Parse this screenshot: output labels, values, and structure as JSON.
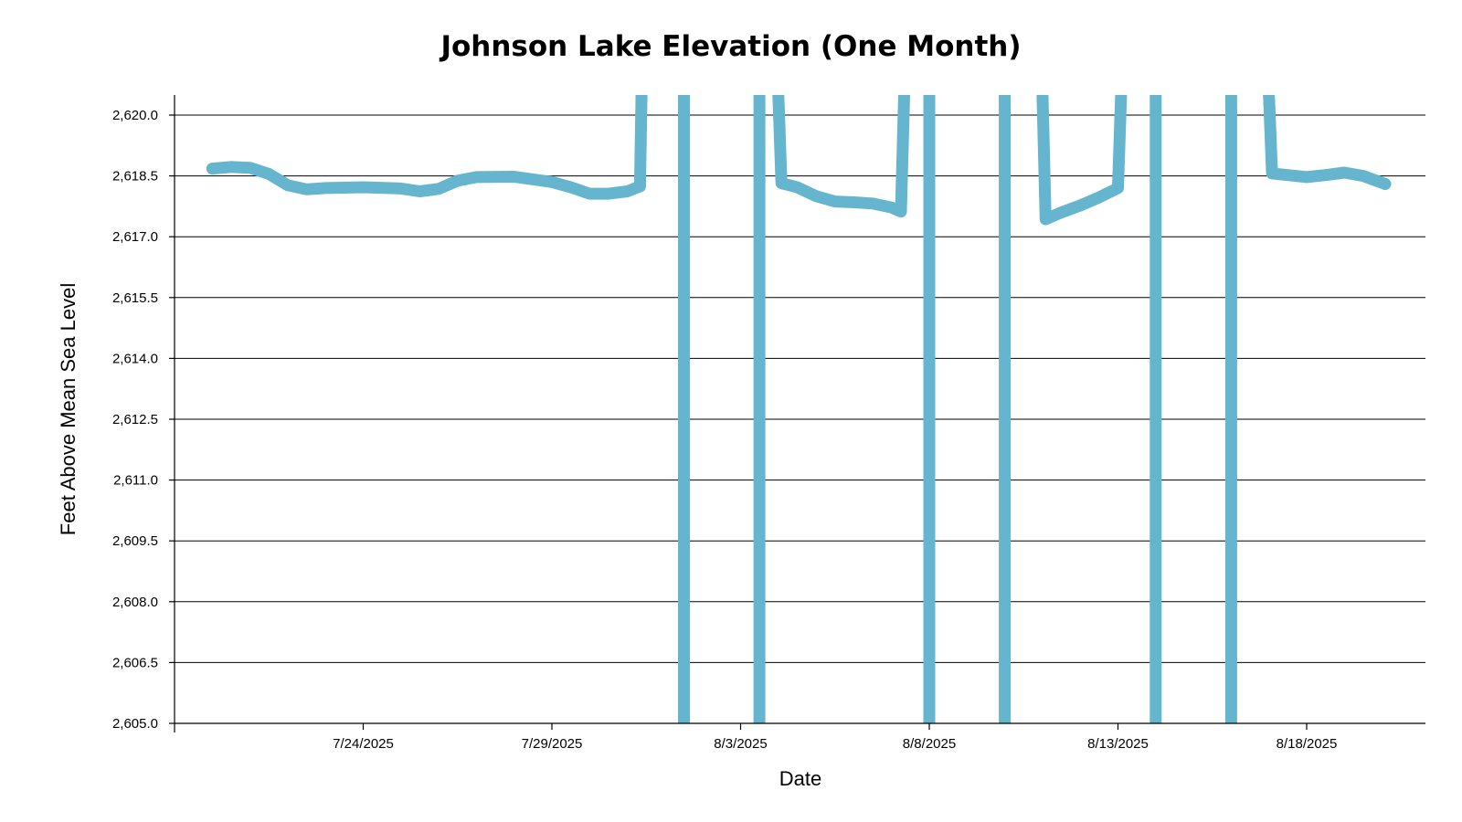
{
  "chart_data": {
    "type": "line",
    "title": "Johnson Lake Elevation (One Month)",
    "xlabel": "Date",
    "ylabel": "Feet Above Mean Sea Level",
    "ylim": [
      2605.0,
      2620.5
    ],
    "xlim": [
      "2025-07-19T00:00",
      "2025-08-21T00:00"
    ],
    "y_ticks": [
      2605.0,
      2606.5,
      2608.0,
      2609.5,
      2611.0,
      2612.5,
      2614.0,
      2615.5,
      2617.0,
      2618.5,
      2620.0
    ],
    "y_tick_labels": [
      "2,605.0",
      "2,606.5",
      "2,608.0",
      "2,609.5",
      "2,611.0",
      "2,612.5",
      "2,614.0",
      "2,615.5",
      "2,617.0",
      "2,618.5",
      "2,620.0"
    ],
    "x_ticks": [
      "2025-07-24T00:00",
      "2025-07-29T00:00",
      "2025-08-03T00:00",
      "2025-08-08T00:00",
      "2025-08-13T00:00",
      "2025-08-18T00:00"
    ],
    "x_tick_labels": [
      "7/24/2025",
      "7/29/2025",
      "8/3/2025",
      "8/8/2025",
      "8/13/2025",
      "8/18/2025"
    ],
    "grid": "horizontal",
    "legend": "none",
    "series_color": "#64b5cd",
    "series": [
      {
        "points": [
          [
            "2025-07-20T00:00",
            2618.68
          ],
          [
            "2025-07-20T12:00",
            2618.72
          ],
          [
            "2025-07-21T00:00",
            2618.7
          ],
          [
            "2025-07-21T12:00",
            2618.55
          ],
          [
            "2025-07-22T00:00",
            2618.27
          ],
          [
            "2025-07-22T12:00",
            2618.17
          ],
          [
            "2025-07-23T00:00",
            2618.2
          ],
          [
            "2025-07-24T00:00",
            2618.22
          ],
          [
            "2025-07-25T00:00",
            2618.19
          ],
          [
            "2025-07-25T12:00",
            2618.12
          ],
          [
            "2025-07-26T00:00",
            2618.18
          ],
          [
            "2025-07-26T12:00",
            2618.38
          ],
          [
            "2025-07-27T00:00",
            2618.47
          ],
          [
            "2025-07-28T00:00",
            2618.48
          ],
          [
            "2025-07-29T00:00",
            2618.35
          ],
          [
            "2025-07-29T12:00",
            2618.22
          ],
          [
            "2025-07-30T00:00",
            2618.06
          ],
          [
            "2025-07-30T12:00",
            2618.06
          ],
          [
            "2025-07-31T00:00",
            2618.12
          ],
          [
            "2025-07-31T08:00",
            2618.24
          ],
          [
            "2025-07-31T09:00",
            2620.5
          ]
        ]
      },
      {
        "points": [
          [
            "2025-08-01T12:00",
            2620.5
          ],
          [
            "2025-08-01T12:00",
            2605.0
          ]
        ]
      },
      {
        "points": [
          [
            "2025-08-03T12:00",
            2620.5
          ],
          [
            "2025-08-03T12:00",
            2605.0
          ]
        ]
      },
      {
        "points": [
          [
            "2025-08-04T00:00",
            2620.5
          ],
          [
            "2025-08-04T02:00",
            2618.32
          ],
          [
            "2025-08-04T12:00",
            2618.22
          ],
          [
            "2025-08-05T00:00",
            2618.0
          ],
          [
            "2025-08-05T12:00",
            2617.87
          ],
          [
            "2025-08-06T00:00",
            2617.85
          ],
          [
            "2025-08-06T12:00",
            2617.82
          ],
          [
            "2025-08-07T00:00",
            2617.72
          ],
          [
            "2025-08-07T06:00",
            2617.62
          ],
          [
            "2025-08-07T08:00",
            2620.5
          ]
        ]
      },
      {
        "points": [
          [
            "2025-08-08T00:00",
            2620.5
          ],
          [
            "2025-08-08T00:00",
            2605.0
          ]
        ]
      },
      {
        "points": [
          [
            "2025-08-10T00:00",
            2620.5
          ],
          [
            "2025-08-10T00:00",
            2605.0
          ]
        ]
      },
      {
        "points": [
          [
            "2025-08-11T00:00",
            2620.5
          ],
          [
            "2025-08-11T02:00",
            2617.43
          ],
          [
            "2025-08-11T12:00",
            2617.6
          ],
          [
            "2025-08-12T00:00",
            2617.77
          ],
          [
            "2025-08-12T12:00",
            2617.97
          ],
          [
            "2025-08-13T00:00",
            2618.2
          ],
          [
            "2025-08-13T02:00",
            2620.5
          ]
        ]
      },
      {
        "points": [
          [
            "2025-08-14T00:00",
            2620.5
          ],
          [
            "2025-08-14T00:00",
            2605.0
          ]
        ]
      },
      {
        "points": [
          [
            "2025-08-16T00:00",
            2620.5
          ],
          [
            "2025-08-16T00:00",
            2605.0
          ]
        ]
      },
      {
        "points": [
          [
            "2025-08-17T00:00",
            2620.5
          ],
          [
            "2025-08-17T02:00",
            2618.56
          ],
          [
            "2025-08-17T12:00",
            2618.52
          ],
          [
            "2025-08-18T00:00",
            2618.47
          ],
          [
            "2025-08-18T12:00",
            2618.52
          ],
          [
            "2025-08-19T00:00",
            2618.58
          ],
          [
            "2025-08-19T12:00",
            2618.5
          ],
          [
            "2025-08-20T02:00",
            2618.3
          ]
        ]
      }
    ]
  }
}
